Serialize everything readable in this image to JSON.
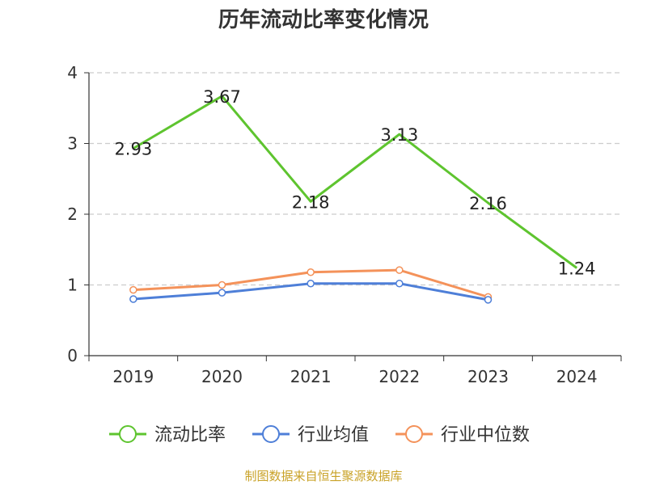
{
  "chart_data": {
    "type": "line",
    "title": "历年流动比率变化情况",
    "categories": [
      "2019",
      "2020",
      "2021",
      "2022",
      "2023",
      "2024"
    ],
    "ylim": [
      0,
      4
    ],
    "yticks": [
      "0",
      "1",
      "2",
      "3",
      "4"
    ],
    "grid": true,
    "legend_position": "bottom",
    "series": [
      {
        "name": "流动比率",
        "color": "#5ec42f",
        "values": [
          2.93,
          3.67,
          2.18,
          3.13,
          2.16,
          1.24
        ],
        "labels": [
          "2.93",
          "3.67",
          "2.18",
          "3.13",
          "2.16",
          "1.24"
        ]
      },
      {
        "name": "行业均值",
        "color": "#4e7fd8",
        "values": [
          0.8,
          0.89,
          1.02,
          1.02,
          0.79,
          null
        ]
      },
      {
        "name": "行业中位数",
        "color": "#f4925a",
        "values": [
          0.93,
          1.0,
          1.18,
          1.21,
          0.83,
          null
        ]
      }
    ]
  },
  "footer": {
    "source": "制图数据来自恒生聚源数据库"
  }
}
